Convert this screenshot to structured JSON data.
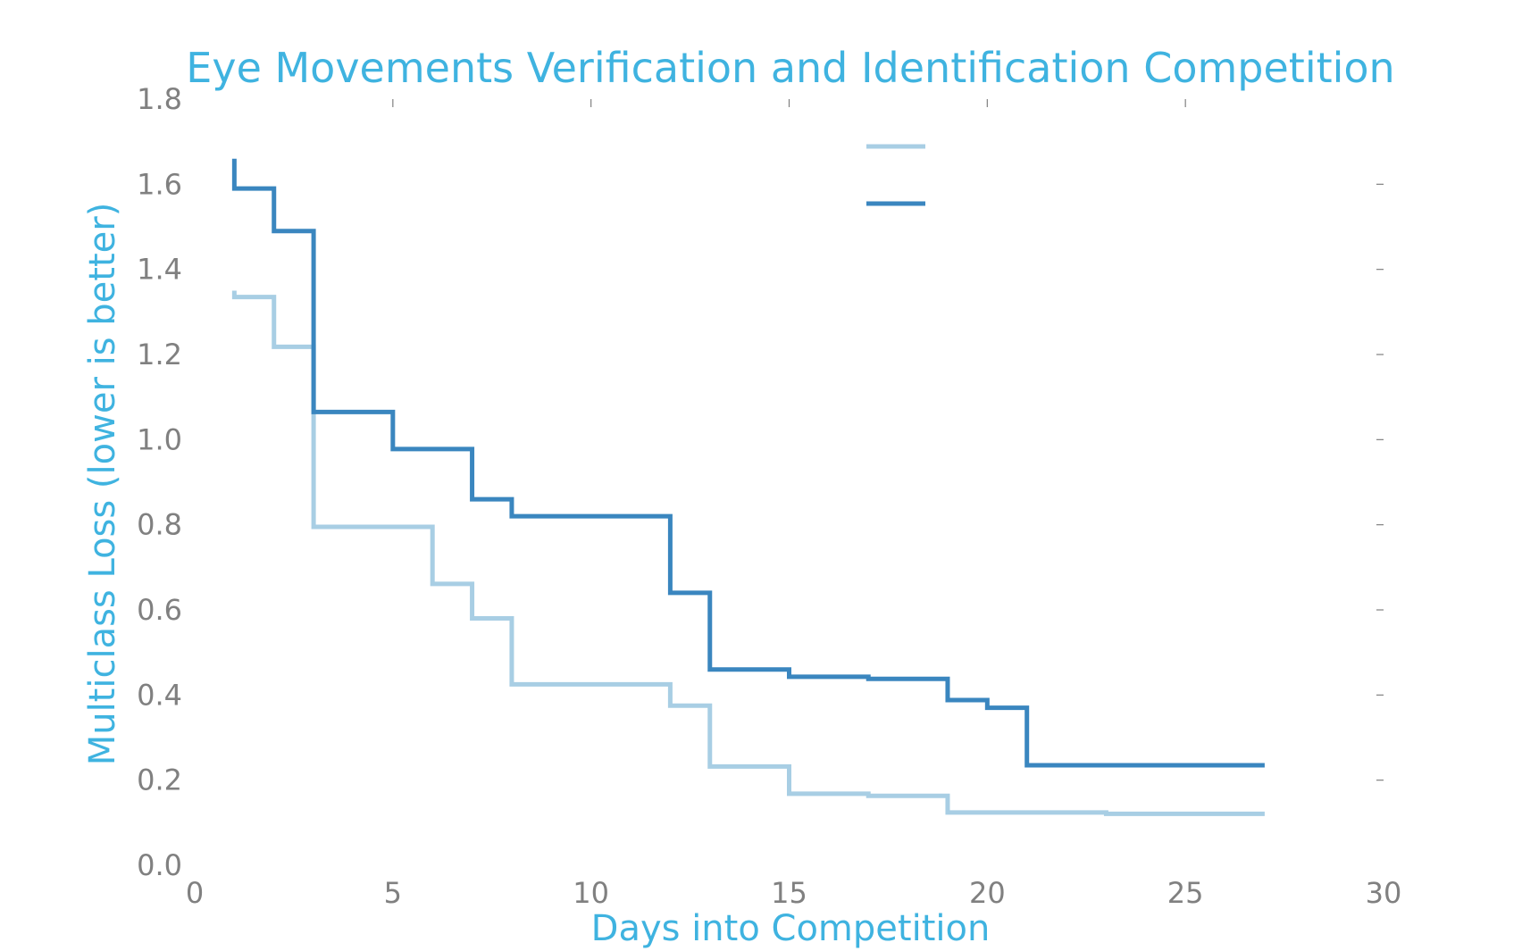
{
  "chart_data": {
    "type": "line",
    "step": "post",
    "title": "Eye Movements Verification and Identification Competition",
    "xlabel": "Days into Competition",
    "ylabel": "Multiclass Loss (lower is better)",
    "xlim": [
      0,
      30
    ],
    "ylim": [
      0.0,
      1.8
    ],
    "xticks": [
      "0",
      "5",
      "10",
      "15",
      "20",
      "25",
      "30"
    ],
    "yticks": [
      "0.0",
      "0.2",
      "0.4",
      "0.6",
      "0.8",
      "1.0",
      "1.2",
      "1.4",
      "1.6",
      "1.8"
    ],
    "grid": false,
    "legend": "top-center, labels not shown",
    "series": [
      {
        "color": "#a8cee4",
        "x": [
          1,
          1,
          2,
          3,
          6,
          7,
          8,
          12,
          13,
          15,
          17,
          19,
          23,
          27
        ],
        "y": [
          1.35,
          1.335,
          1.218,
          0.795,
          0.661,
          0.58,
          0.425,
          0.375,
          0.232,
          0.168,
          0.163,
          0.124,
          0.121,
          0.121
        ]
      },
      {
        "color": "#3a86bf",
        "x": [
          1,
          1,
          2,
          3,
          5,
          7,
          8,
          12,
          13,
          15,
          17,
          19,
          20,
          21,
          27
        ],
        "y": [
          1.66,
          1.59,
          1.49,
          1.065,
          0.978,
          0.86,
          0.82,
          0.64,
          0.46,
          0.443,
          0.438,
          0.388,
          0.37,
          0.235,
          0.235
        ]
      }
    ]
  }
}
